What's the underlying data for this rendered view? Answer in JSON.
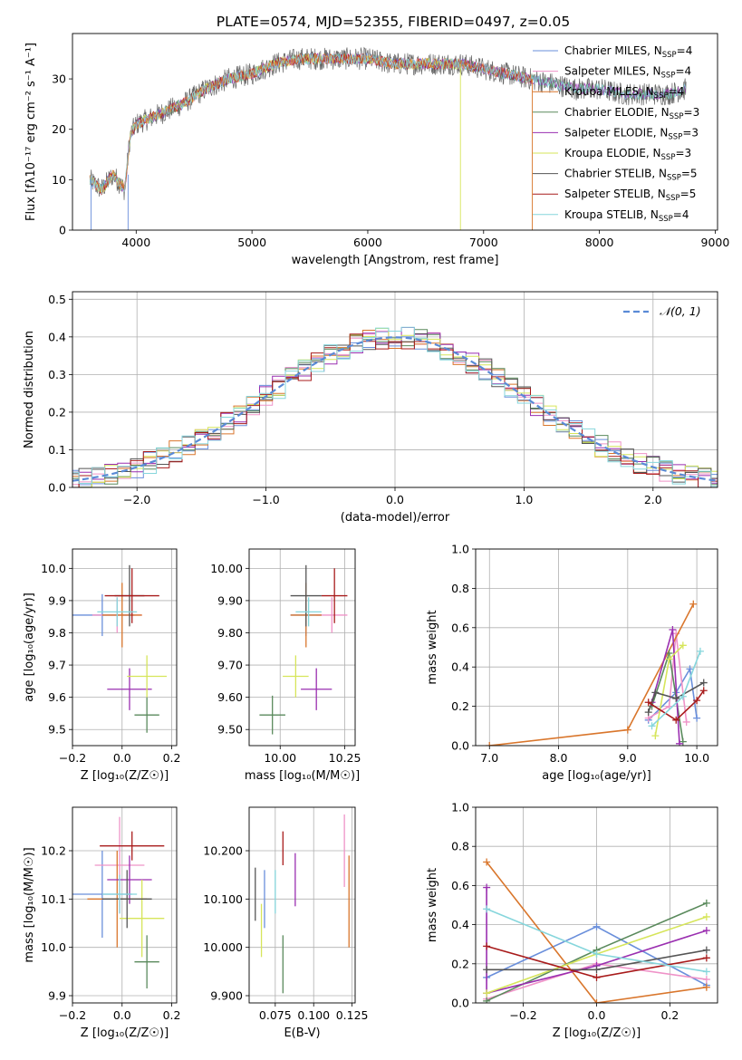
{
  "figure_title": "PLATE=0574, MJD=52355, FIBERID=0497, z=0.05",
  "models": [
    {
      "name": "Chabrier MILES",
      "nssp": "4",
      "color": "#6a8fdb"
    },
    {
      "name": "Salpeter MILES",
      "nssp": "4",
      "color": "#ef93c8"
    },
    {
      "name": "Kroupa MILES",
      "nssp": "4",
      "color": "#d9762c"
    },
    {
      "name": "Chabrier ELODIE",
      "nssp": "3",
      "color": "#5a8a5c"
    },
    {
      "name": "Salpeter ELODIE",
      "nssp": "3",
      "color": "#9a2fb0"
    },
    {
      "name": "Kroupa ELODIE",
      "nssp": "3",
      "color": "#d6e55a"
    },
    {
      "name": "Chabrier STELIB",
      "nssp": "5",
      "color": "#555555"
    },
    {
      "name": "Salpeter STELIB",
      "nssp": "5",
      "color": "#a81b1b"
    },
    {
      "name": "Kroupa STELIB",
      "nssp": "4",
      "color": "#86d6dc"
    }
  ],
  "chart_data": [
    {
      "id": "spectrum",
      "type": "line",
      "xlabel": "wavelength [Angstrom, rest frame]",
      "ylabel": "Flux [fλ10⁻¹⁷ erg cm⁻² s⁻¹ A⁻¹]",
      "xlim": [
        3450,
        9020
      ],
      "ylim": [
        0,
        39
      ],
      "xticks": [
        4000,
        5000,
        6000,
        7000,
        8000,
        9000
      ],
      "yticks": [
        0,
        10,
        20,
        30
      ],
      "x_range_data": [
        3600,
        8750
      ],
      "envelope": [
        [
          3600,
          10
        ],
        [
          3700,
          8
        ],
        [
          3800,
          11
        ],
        [
          3900,
          8
        ],
        [
          3950,
          19
        ],
        [
          4000,
          21
        ],
        [
          4200,
          23
        ],
        [
          4400,
          25
        ],
        [
          4600,
          28
        ],
        [
          4800,
          30
        ],
        [
          5000,
          31
        ],
        [
          5200,
          33
        ],
        [
          5400,
          34
        ],
        [
          5600,
          34
        ],
        [
          5800,
          34
        ],
        [
          6000,
          34
        ],
        [
          6200,
          33
        ],
        [
          6400,
          33
        ],
        [
          6600,
          33
        ],
        [
          6800,
          33
        ],
        [
          7000,
          32
        ],
        [
          7200,
          31
        ],
        [
          7400,
          30
        ],
        [
          7600,
          29
        ],
        [
          7800,
          28
        ],
        [
          8000,
          28
        ],
        [
          8200,
          27
        ],
        [
          8400,
          27
        ],
        [
          8600,
          27
        ],
        [
          8750,
          28
        ]
      ]
    },
    {
      "id": "residuals",
      "type": "line",
      "xlabel": "(data-model)/error",
      "ylabel": "Normed distribution",
      "xlim": [
        -2.5,
        2.5
      ],
      "ylim": [
        0,
        0.52
      ],
      "xticks": [
        -2,
        -1,
        0,
        1,
        2
      ],
      "yticks": [
        0,
        0.1,
        0.2,
        0.3,
        0.4,
        0.5
      ],
      "legend": "𝒩(0, 1)",
      "gaussian": {
        "mean": 0,
        "sigma": 1
      }
    },
    {
      "id": "age_vs_Z",
      "type": "scatter",
      "xlabel": "Z [log₁₀(Z/Z☉)]",
      "ylabel": "age  [log₁₀(age/yr)]",
      "xlim": [
        -0.2,
        0.22
      ],
      "ylim": [
        9.45,
        10.06
      ],
      "xticks": [
        -0.2,
        0.0,
        0.2
      ],
      "yticks": [
        9.5,
        9.6,
        9.7,
        9.8,
        9.9,
        10.0
      ],
      "points": [
        {
          "x": -0.08,
          "y": 9.855,
          "xerr": 0.13,
          "yerr": 0.065
        },
        {
          "x": -0.02,
          "y": 9.855,
          "xerr": 0.1,
          "yerr": 0.055
        },
        {
          "x": 0.0,
          "y": 9.855,
          "xerr": 0.08,
          "yerr": 0.1
        },
        {
          "x": 0.1,
          "y": 9.545,
          "xerr": 0.05,
          "yerr": 0.055
        },
        {
          "x": 0.03,
          "y": 9.625,
          "xerr": 0.09,
          "yerr": 0.065
        },
        {
          "x": 0.1,
          "y": 9.665,
          "xerr": 0.08,
          "yerr": 0.065
        },
        {
          "x": 0.03,
          "y": 9.915,
          "xerr": 0.06,
          "yerr": 0.095
        },
        {
          "x": 0.04,
          "y": 9.915,
          "xerr": 0.11,
          "yerr": 0.085
        },
        {
          "x": -0.02,
          "y": 9.865,
          "xerr": 0.08,
          "yerr": 0.045
        }
      ]
    },
    {
      "id": "age_vs_mass",
      "type": "scatter",
      "xlabel": "mass [log₁₀(M/M☉)]",
      "ylabel": "",
      "xlim": [
        9.88,
        10.29
      ],
      "ylim": [
        9.45,
        10.06
      ],
      "xticks": [
        10.0,
        10.25
      ],
      "yticks": [
        9.5,
        9.6,
        9.7,
        9.8,
        9.9,
        10.0
      ],
      "points": [
        {
          "x": 10.1,
          "y": 9.855,
          "xerr": 0.06,
          "yerr": 0.065
        },
        {
          "x": 10.2,
          "y": 9.855,
          "xerr": 0.06,
          "yerr": 0.055
        },
        {
          "x": 10.1,
          "y": 9.855,
          "xerr": 0.06,
          "yerr": 0.1
        },
        {
          "x": 9.97,
          "y": 9.545,
          "xerr": 0.05,
          "yerr": 0.06
        },
        {
          "x": 10.14,
          "y": 9.625,
          "xerr": 0.06,
          "yerr": 0.065
        },
        {
          "x": 10.06,
          "y": 9.665,
          "xerr": 0.05,
          "yerr": 0.065
        },
        {
          "x": 10.1,
          "y": 9.915,
          "xerr": 0.06,
          "yerr": 0.095
        },
        {
          "x": 10.21,
          "y": 9.915,
          "xerr": 0.05,
          "yerr": 0.085
        },
        {
          "x": 10.11,
          "y": 9.865,
          "xerr": 0.05,
          "yerr": 0.045
        }
      ]
    },
    {
      "id": "mw_vs_age",
      "type": "line",
      "xlabel": "age  [log₁₀(age/yr)]",
      "ylabel": "mass weight",
      "xlim": [
        6.8,
        10.3
      ],
      "ylim": [
        0,
        1
      ],
      "xticks": [
        7,
        8,
        9,
        10
      ],
      "yticks": [
        0,
        0.2,
        0.4,
        0.6,
        0.8,
        1.0
      ],
      "series": [
        [
          [
            9.3,
            0.13
          ],
          [
            9.7,
            0.27
          ],
          [
            9.9,
            0.39
          ],
          [
            10.0,
            0.14
          ]
        ],
        [
          [
            9.3,
            0.14
          ],
          [
            9.6,
            0.2
          ],
          [
            9.7,
            0.57
          ],
          [
            9.85,
            0.12
          ]
        ],
        [
          [
            7.0,
            0.0
          ],
          [
            9.0,
            0.08
          ],
          [
            9.95,
            0.72
          ]
        ],
        [
          [
            9.35,
            0.2
          ],
          [
            9.6,
            0.47
          ],
          [
            9.8,
            0.02
          ]
        ],
        [
          [
            9.35,
            0.22
          ],
          [
            9.65,
            0.59
          ],
          [
            9.75,
            0.01
          ]
        ],
        [
          [
            9.4,
            0.05
          ],
          [
            9.6,
            0.44
          ],
          [
            9.8,
            0.51
          ]
        ],
        [
          [
            9.3,
            0.17
          ],
          [
            9.4,
            0.27
          ],
          [
            9.7,
            0.24
          ],
          [
            10.1,
            0.32
          ]
        ],
        [
          [
            9.3,
            0.22
          ],
          [
            9.7,
            0.13
          ],
          [
            10.0,
            0.23
          ],
          [
            10.1,
            0.28
          ]
        ],
        [
          [
            9.35,
            0.1
          ],
          [
            9.8,
            0.25
          ],
          [
            10.05,
            0.48
          ]
        ]
      ]
    },
    {
      "id": "mass_vs_Z",
      "type": "scatter",
      "xlabel": "Z [log₁₀(Z/Z☉)]",
      "ylabel": "mass [log₁₀(M/M☉)]",
      "xlim": [
        -0.2,
        0.22
      ],
      "ylim": [
        9.885,
        10.29
      ],
      "xticks": [
        -0.2,
        0.0,
        0.2
      ],
      "yticks": [
        9.9,
        10.0,
        10.1,
        10.2
      ],
      "points": [
        {
          "x": -0.08,
          "y": 10.11,
          "xerr": 0.12,
          "yerr": 0.09
        },
        {
          "x": -0.01,
          "y": 10.17,
          "xerr": 0.1,
          "yerr": 0.1
        },
        {
          "x": -0.02,
          "y": 10.1,
          "xerr": 0.12,
          "yerr": 0.1
        },
        {
          "x": 0.1,
          "y": 9.97,
          "xerr": 0.05,
          "yerr": 0.055
        },
        {
          "x": 0.03,
          "y": 10.14,
          "xerr": 0.09,
          "yerr": 0.05
        },
        {
          "x": 0.08,
          "y": 10.06,
          "xerr": 0.09,
          "yerr": 0.08
        },
        {
          "x": 0.02,
          "y": 10.1,
          "xerr": 0.1,
          "yerr": 0.06
        },
        {
          "x": 0.04,
          "y": 10.21,
          "xerr": 0.13,
          "yerr": 0.03
        },
        {
          "x": -0.01,
          "y": 10.11,
          "xerr": 0.07,
          "yerr": 0.04
        }
      ]
    },
    {
      "id": "mass_vs_ebv",
      "type": "scatter",
      "xlabel": "E(B-V)",
      "ylabel": "",
      "xlim": [
        0.058,
        0.127
      ],
      "ylim": [
        9.885,
        10.29
      ],
      "xticks": [
        0.075,
        0.1,
        0.125
      ],
      "yticks": [
        9.9,
        10.0,
        10.1,
        10.2
      ],
      "points": [
        {
          "x": 0.068,
          "y": 10.1,
          "xerr": 0,
          "yerr": 0.06
        },
        {
          "x": 0.12,
          "y": 10.2,
          "xerr": 0,
          "yerr": 0.075
        },
        {
          "x": 0.123,
          "y": 10.095,
          "xerr": 0,
          "yerr": 0.095
        },
        {
          "x": 0.08,
          "y": 9.965,
          "xerr": 0,
          "yerr": 0.06
        },
        {
          "x": 0.088,
          "y": 10.14,
          "xerr": 0,
          "yerr": 0.055
        },
        {
          "x": 0.066,
          "y": 10.035,
          "xerr": 0,
          "yerr": 0.055
        },
        {
          "x": 0.062,
          "y": 10.11,
          "xerr": 0,
          "yerr": 0.055
        },
        {
          "x": 0.08,
          "y": 10.205,
          "xerr": 0,
          "yerr": 0.035
        },
        {
          "x": 0.075,
          "y": 10.115,
          "xerr": 0,
          "yerr": 0.045
        }
      ]
    },
    {
      "id": "mw_vs_Z",
      "type": "line",
      "xlabel": "Z [log₁₀(Z/Z☉)]",
      "ylabel": "mass weight",
      "xlim": [
        -0.33,
        0.33
      ],
      "ylim": [
        0,
        1
      ],
      "xticks": [
        -0.2,
        0.0,
        0.2
      ],
      "yticks": [
        0,
        0.2,
        0.4,
        0.6,
        0.8,
        1.0
      ],
      "series": [
        [
          [
            -0.3,
            0.13
          ],
          [
            0.0,
            0.39
          ],
          [
            0.3,
            0.09
          ]
        ],
        [
          [
            -0.3,
            0.02
          ],
          [
            0.0,
            0.2
          ],
          [
            0.3,
            0.12
          ]
        ],
        [
          [
            -0.3,
            0.72
          ],
          [
            0.0,
            0.0
          ],
          [
            0.3,
            0.08
          ]
        ],
        [
          [
            -0.3,
            0.01
          ],
          [
            0.0,
            0.27
          ],
          [
            0.3,
            0.51
          ]
        ],
        [
          [
            -0.3,
            0.59
          ],
          [
            -0.3,
            0.05
          ],
          [
            0.0,
            0.19
          ],
          [
            0.3,
            0.37
          ]
        ],
        [
          [
            -0.3,
            0.05
          ],
          [
            0.0,
            0.25
          ],
          [
            0.3,
            0.44
          ]
        ],
        [
          [
            -0.3,
            0.17
          ],
          [
            0.0,
            0.17
          ],
          [
            0.3,
            0.27
          ]
        ],
        [
          [
            -0.3,
            0.29
          ],
          [
            0.0,
            0.13
          ],
          [
            0.3,
            0.23
          ]
        ],
        [
          [
            -0.3,
            0.48
          ],
          [
            0.0,
            0.25
          ],
          [
            0.3,
            0.16
          ]
        ]
      ]
    }
  ]
}
